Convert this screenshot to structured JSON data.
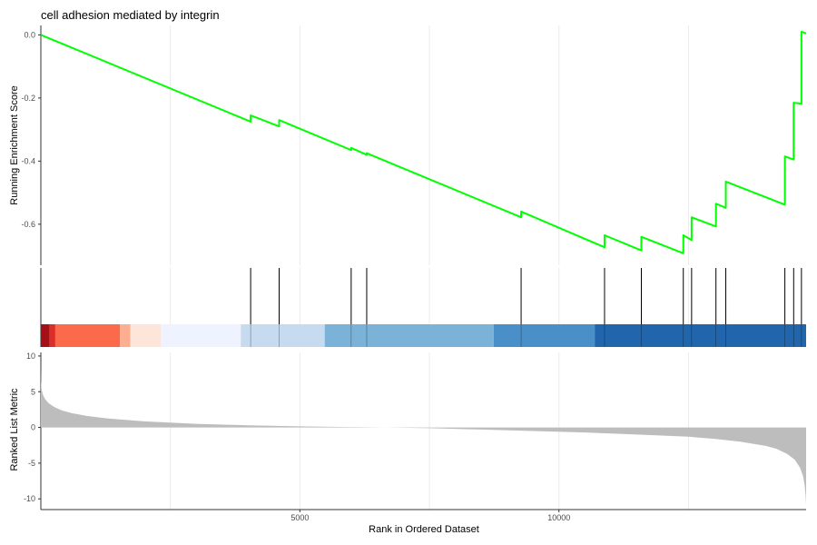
{
  "chart_data": {
    "type": "line",
    "title": "cell adhesion mediated by integrin",
    "x_range": [
      1,
      14770
    ],
    "x_ticks": [
      {
        "value": 5000,
        "label": "5000"
      },
      {
        "value": 10000,
        "label": "10000"
      }
    ],
    "xlabel": "Rank in Ordered Dataset",
    "grid": true,
    "panels": {
      "running_score": {
        "ylabel": "Running Enrichment Score",
        "ylim": [
          -0.73,
          0.03
        ],
        "y_ticks": [
          {
            "value": 0.0,
            "label": "0.0"
          },
          {
            "value": -0.2,
            "label": "-0.2"
          },
          {
            "value": -0.4,
            "label": "-0.4"
          },
          {
            "value": -0.6,
            "label": "-0.6"
          }
        ],
        "line_color": "#00ff00",
        "series": {
          "x": [
            1,
            4050,
            4050,
            4600,
            4600,
            5990,
            5990,
            6290,
            6290,
            9270,
            9270,
            10880,
            10880,
            11590,
            11590,
            12400,
            12400,
            12560,
            12560,
            13030,
            13030,
            13220,
            13220,
            14360,
            14360,
            14530,
            14530,
            14680,
            14680,
            14770
          ],
          "y": [
            0.0,
            -0.275,
            -0.255,
            -0.29,
            -0.27,
            -0.365,
            -0.358,
            -0.38,
            -0.375,
            -0.578,
            -0.56,
            -0.673,
            -0.635,
            -0.683,
            -0.64,
            -0.692,
            -0.635,
            -0.65,
            -0.578,
            -0.607,
            -0.535,
            -0.548,
            -0.465,
            -0.538,
            -0.385,
            -0.395,
            -0.215,
            -0.218,
            0.01,
            0.005
          ]
        }
      },
      "hits": {
        "positions": [
          4050,
          4600,
          5990,
          6290,
          9270,
          10880,
          11590,
          12400,
          12560,
          13030,
          13220,
          14360,
          14530,
          14680
        ]
      },
      "color_bar": {
        "segments": [
          {
            "from": 1,
            "to": 170,
            "color": "#a50f15"
          },
          {
            "from": 170,
            "to": 280,
            "color": "#de2d26"
          },
          {
            "from": 280,
            "to": 1530,
            "color": "#fb6a4a"
          },
          {
            "from": 1530,
            "to": 1730,
            "color": "#fcae91"
          },
          {
            "from": 1730,
            "to": 2320,
            "color": "#fee5d9"
          },
          {
            "from": 2320,
            "to": 3860,
            "color": "#eff3ff"
          },
          {
            "from": 3860,
            "to": 5480,
            "color": "#c6dbef"
          },
          {
            "from": 5480,
            "to": 8740,
            "color": "#7ab2d8"
          },
          {
            "from": 8740,
            "to": 10690,
            "color": "#4a8fc8"
          },
          {
            "from": 10690,
            "to": 14770,
            "color": "#2166ac"
          }
        ]
      },
      "ranked_metric": {
        "ylabel": "Ranked List Metric",
        "ylim": [
          -11.5,
          10.5
        ],
        "y_ticks": [
          {
            "value": 10,
            "label": "10"
          },
          {
            "value": 5,
            "label": "5"
          },
          {
            "value": 0,
            "label": "0"
          },
          {
            "value": -5,
            "label": "-5"
          },
          {
            "value": -10,
            "label": "-10"
          }
        ],
        "fill_color": "#bdbdbd",
        "profile": {
          "x": [
            1,
            5,
            15,
            40,
            80,
            150,
            250,
            400,
            600,
            900,
            1300,
            2000,
            3000,
            4000,
            5000,
            6000,
            6800,
            7500,
            8500,
            9500,
            10500,
            11500,
            12500,
            13000,
            13500,
            14000,
            14200,
            14400,
            14550,
            14650,
            14710,
            14740,
            14760,
            14770
          ],
          "y": [
            8.5,
            6.5,
            5.3,
            4.6,
            4.0,
            3.4,
            2.9,
            2.4,
            2.0,
            1.6,
            1.25,
            0.85,
            0.5,
            0.3,
            0.15,
            0.05,
            -0.02,
            -0.1,
            -0.3,
            -0.5,
            -0.7,
            -1.0,
            -1.3,
            -1.6,
            -2.0,
            -2.6,
            -3.0,
            -3.7,
            -4.5,
            -5.6,
            -6.8,
            -8.0,
            -9.5,
            -10.8
          ]
        }
      }
    }
  }
}
